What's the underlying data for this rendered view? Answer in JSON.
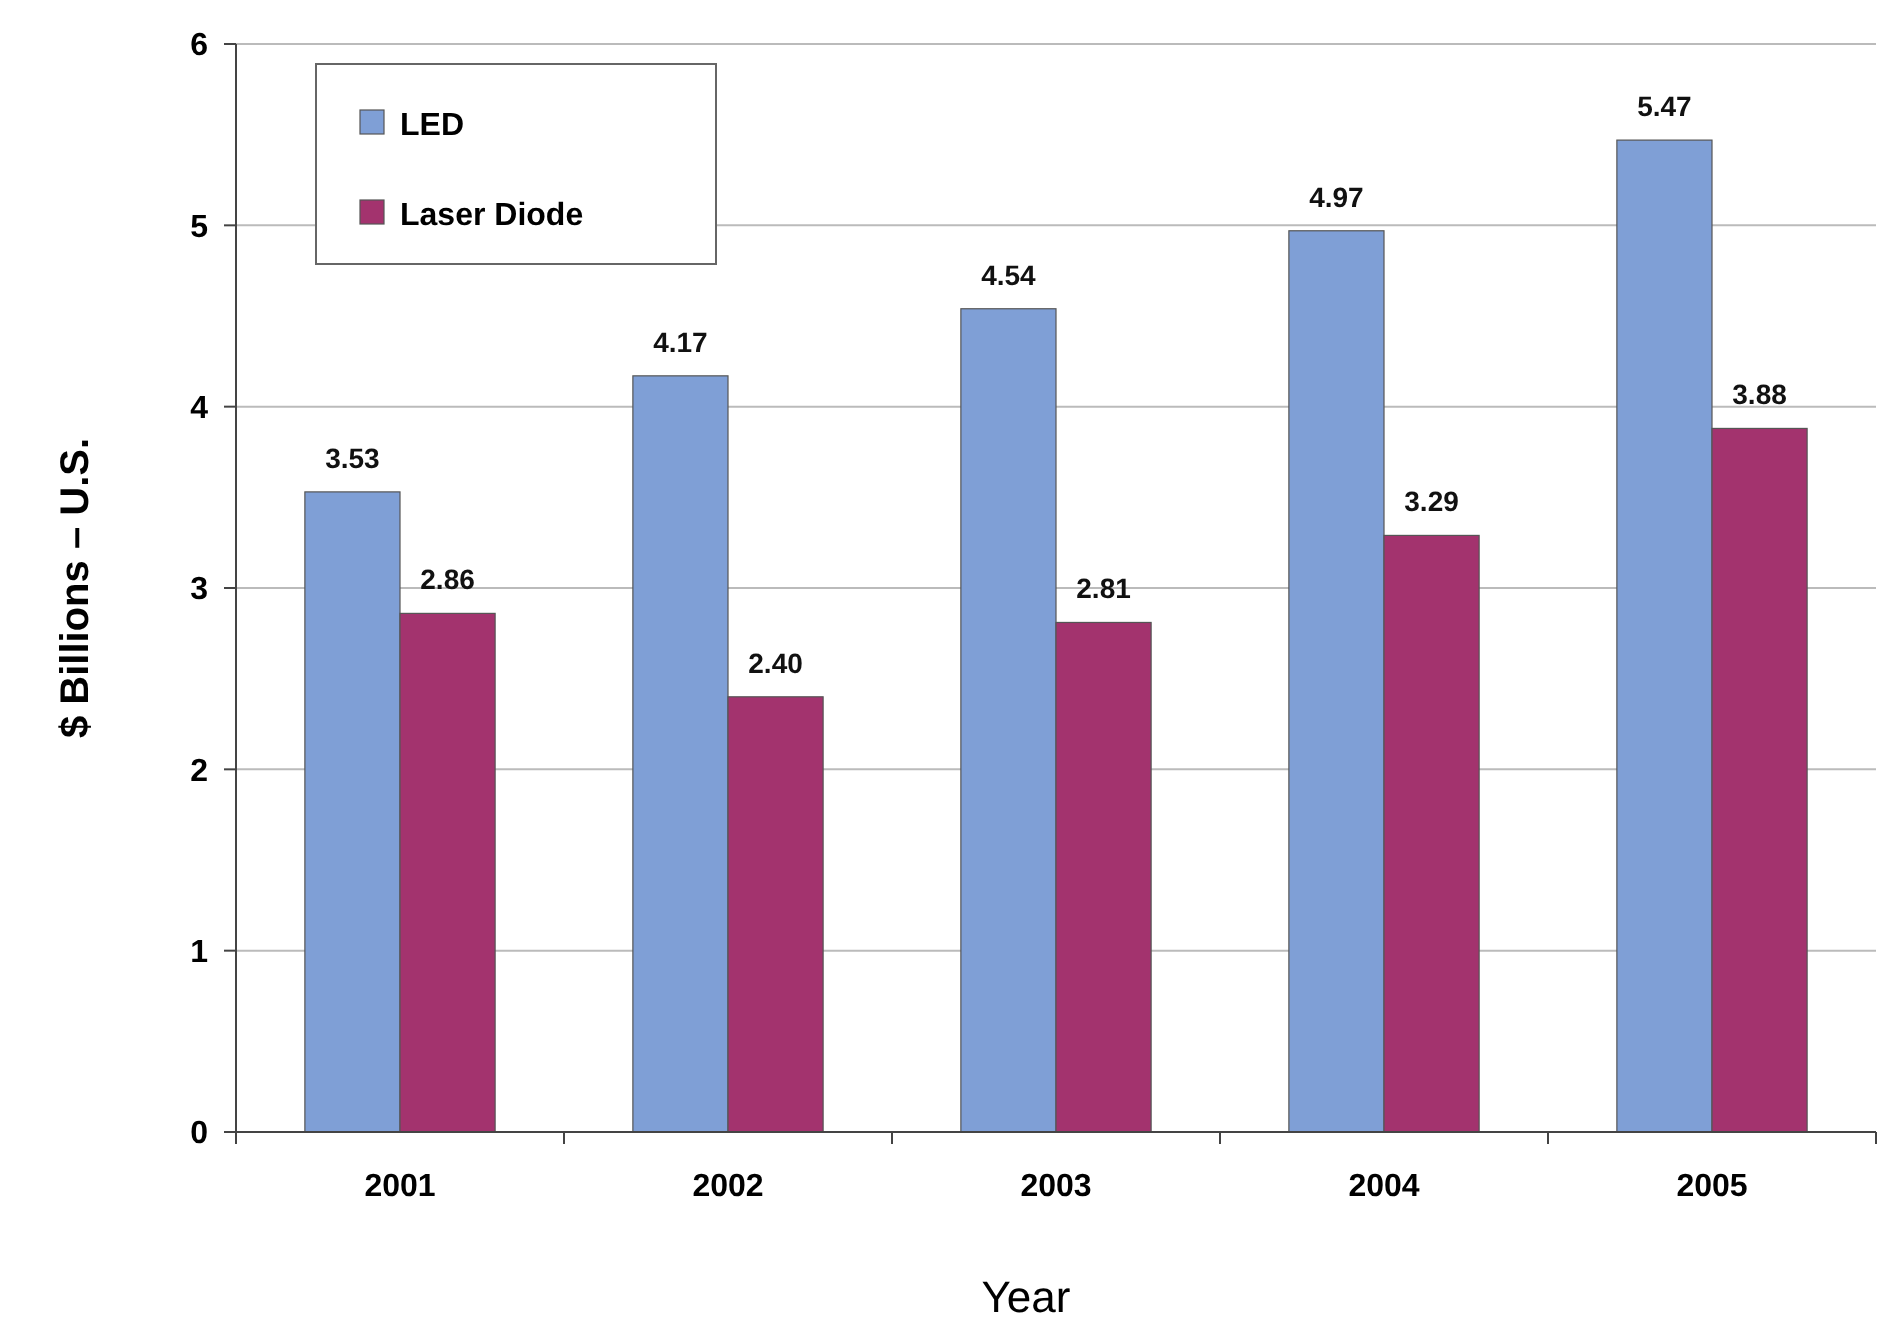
{
  "chart_data": {
    "type": "bar",
    "xlabel": "Year",
    "ylabel": "$ Billions – U.S.",
    "categories": [
      "2001",
      "2002",
      "2003",
      "2004",
      "2005"
    ],
    "series": [
      {
        "name": "LED",
        "color": "#7f9fd6",
        "values": [
          3.53,
          4.17,
          4.54,
          4.97,
          5.47
        ],
        "value_labels": [
          "3.53",
          "4.17",
          "4.54",
          "4.97",
          "5.47"
        ]
      },
      {
        "name": "Laser Diode",
        "color": "#a3336e",
        "values": [
          2.86,
          2.4,
          2.81,
          3.29,
          3.88
        ],
        "value_labels": [
          "2.86",
          "2.40",
          "2.81",
          "3.29",
          "3.88"
        ]
      }
    ],
    "ylim": [
      0,
      6
    ],
    "yticks": [
      0,
      1,
      2,
      3,
      4,
      5,
      6
    ],
    "grid": "y",
    "legend": "top left"
  }
}
